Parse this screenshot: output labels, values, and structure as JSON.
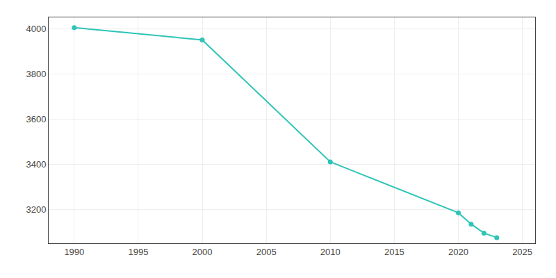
{
  "chart_data": {
    "type": "line",
    "x": [
      1990,
      2000,
      2010,
      2020,
      2021,
      2022,
      2023
    ],
    "values": [
      4005,
      3950,
      3410,
      3185,
      3135,
      3095,
      3075
    ],
    "color": "#2ec4b6",
    "marker": "circle",
    "line_style": "solid",
    "xlim": [
      1988,
      2026
    ],
    "ylim": [
      3050,
      4050
    ],
    "xticks": [
      1990,
      1995,
      2000,
      2005,
      2010,
      2015,
      2020,
      2025
    ],
    "yticks": [
      3200,
      3400,
      3600,
      3800,
      4000
    ],
    "grid": true
  }
}
